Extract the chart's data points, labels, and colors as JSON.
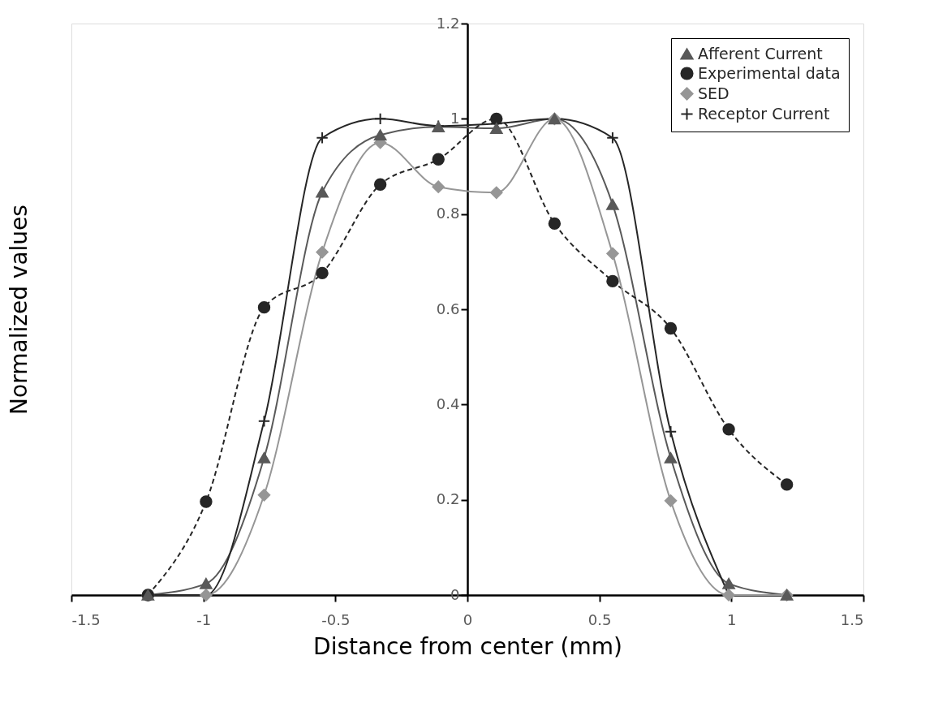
{
  "chart_data": {
    "type": "line",
    "xlabel": "Distance from center (mm)",
    "ylabel": "Normalized values",
    "x": [
      -1.21,
      -0.99,
      -0.77,
      -0.55,
      -0.33,
      -0.11,
      0.11,
      0.33,
      0.55,
      0.77,
      0.99,
      1.21
    ],
    "series": [
      {
        "name": "Afferent Current",
        "color": "#595959",
        "marker": "triangle",
        "line_style": "solid",
        "values": [
          0,
          0.024,
          0.288,
          0.846,
          0.966,
          0.983,
          0.98,
          1.0,
          0.82,
          0.288,
          0.024,
          0
        ]
      },
      {
        "name": "Experimental data",
        "color": "#262626",
        "marker": "circle",
        "line_style": "dashed",
        "values": [
          0,
          0.196,
          0.604,
          0.676,
          0.862,
          0.915,
          1.0,
          0.78,
          0.659,
          0.56,
          0.348,
          0.232
        ]
      },
      {
        "name": "SED",
        "color": "#969696",
        "marker": "diamond",
        "line_style": "solid",
        "values": [
          0,
          0,
          0.21,
          0.72,
          0.95,
          0.857,
          0.845,
          1.0,
          0.717,
          0.198,
          0,
          0
        ]
      },
      {
        "name": "Receptor Current",
        "color": "#262626",
        "marker": "cross",
        "line_style": "solid",
        "values": [
          0,
          0,
          0.365,
          0.96,
          1.0,
          0.985,
          0.99,
          1.0,
          0.96,
          0.343,
          0,
          null
        ]
      }
    ],
    "xlim": [
      -1.5,
      1.5
    ],
    "xticks": [
      -1.5,
      -1,
      -0.5,
      0,
      0.5,
      1,
      1.5
    ],
    "ylim": [
      0,
      1.2
    ],
    "yticks": [
      0,
      0.2,
      0.4,
      0.6,
      0.8,
      1,
      1.2
    ],
    "grid": false,
    "legend": "top right"
  }
}
